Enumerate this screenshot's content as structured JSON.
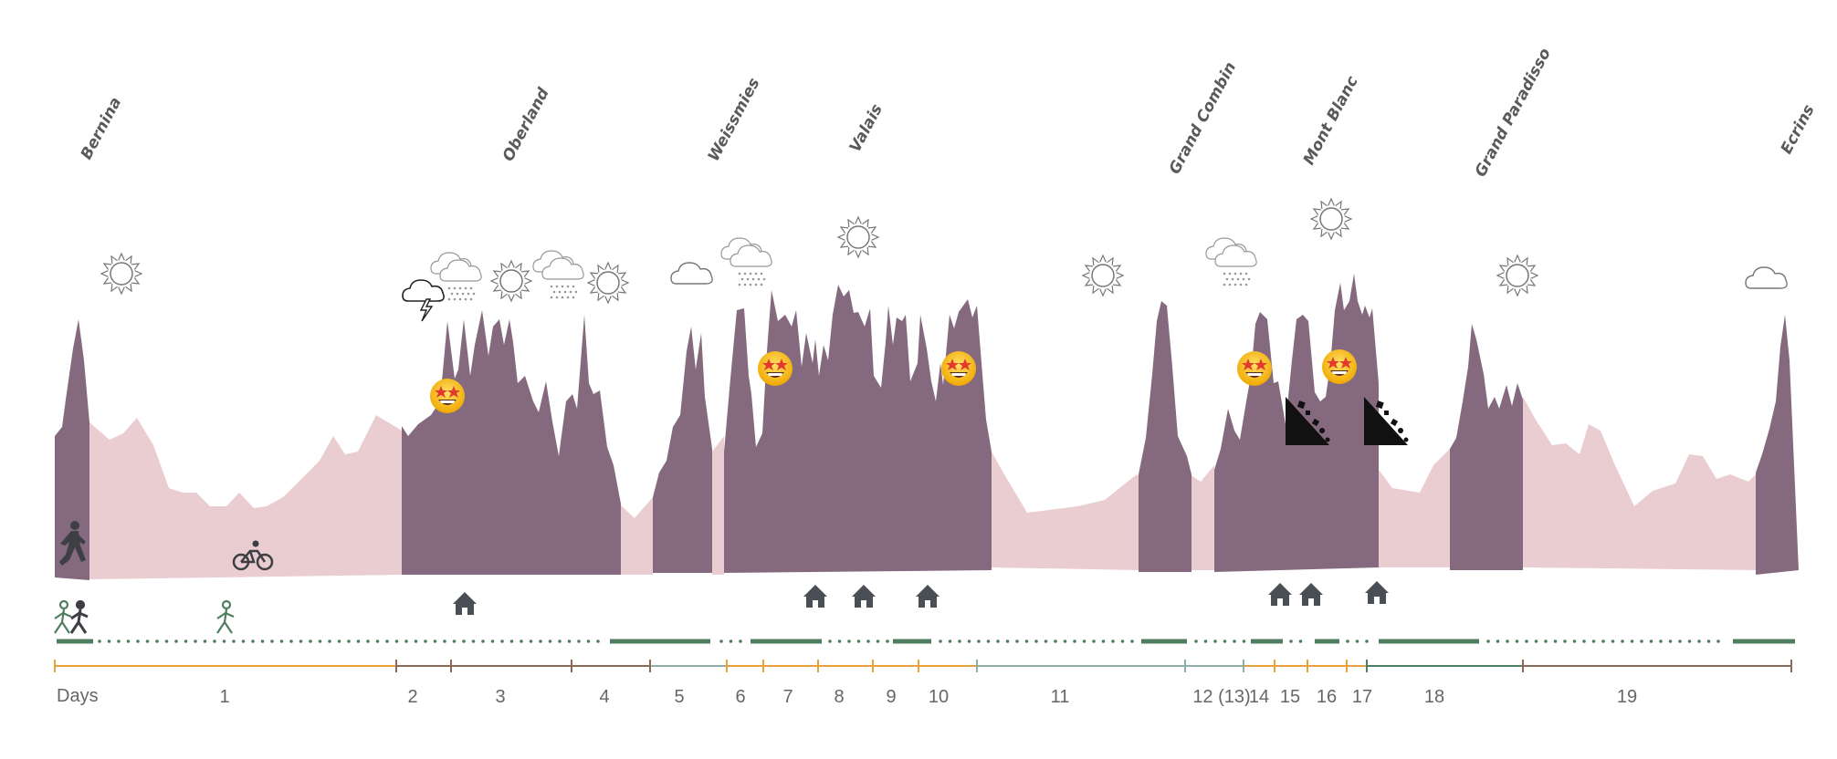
{
  "regions": [
    "Bernina",
    "Oberland",
    "Weissmies",
    "Valais",
    "Grand Combin",
    "Mont Blanc",
    "Grand Paradisso",
    "Ecrins"
  ],
  "days_title": "Days",
  "days": [
    "1",
    "2",
    "3",
    "4",
    "5",
    "6",
    "7",
    "8",
    "9",
    "10",
    "11",
    "12 (13)",
    "14",
    "15",
    "16",
    "17",
    "18",
    "19"
  ],
  "weather_icons": [
    "sun-icon",
    "thunderstorm-icon",
    "snow-icon",
    "sun-icon",
    "snow-icon",
    "sun-icon",
    "cloud-icon",
    "snow-icon",
    "sun-icon",
    "sun-icon",
    "snow-icon",
    "sun-icon",
    "sun-icon",
    "cloud-icon"
  ],
  "emoji_icons": [
    "star-struck-emoji",
    "rockfall-icon",
    "hut-icon",
    "hiker-icon",
    "cyclist-icon",
    "walkers-icon"
  ],
  "colors": {
    "mountain": "#856a7f",
    "valley": "#eacdd0",
    "track": "#4e7e5f",
    "timeline_orange": "#e8a23c",
    "timeline_brown": "#8b6a5a",
    "timeline_teal": "#8fb0aa",
    "timeline_green": "#4e7e5f",
    "icon_dark": "#4a4e55"
  }
}
